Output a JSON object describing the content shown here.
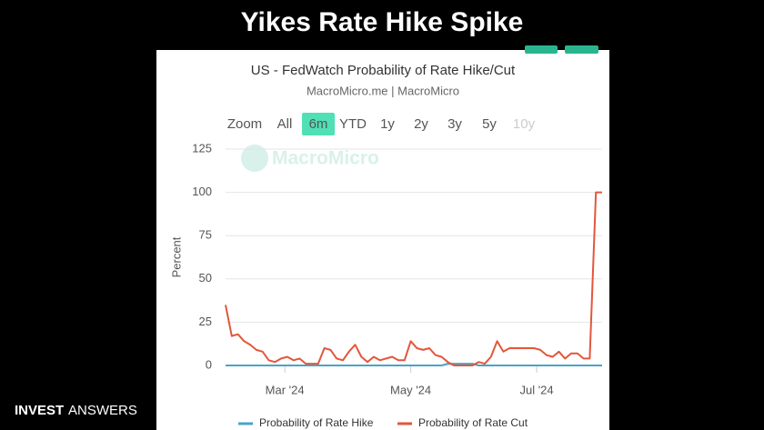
{
  "header": {
    "title": "Yikes Rate Hike Spike"
  },
  "brand": {
    "left": "INVEST",
    "right": "ANSWERS"
  },
  "zoom": {
    "label": "Zoom",
    "buttons": [
      "All",
      "6m",
      "YTD",
      "1y",
      "2y",
      "3y",
      "5y",
      "10y"
    ],
    "selected": "6m",
    "disabled": [
      "10y"
    ]
  },
  "watermark": "MacroMicro",
  "chart_data": {
    "type": "line",
    "title": "US - FedWatch Probability of Rate Hike/Cut",
    "subtitle": "MacroMicro.me | MacroMicro",
    "y_label": "Percent",
    "ylim": [
      0,
      125
    ],
    "yticks": [
      0,
      25,
      50,
      75,
      100,
      125
    ],
    "xlim": [
      0,
      61
    ],
    "xticks": [
      {
        "value": 9.6,
        "label": "Mar '24"
      },
      {
        "value": 30.0,
        "label": "May '24"
      },
      {
        "value": 50.4,
        "label": "Jul '24"
      }
    ],
    "grid": true,
    "series": [
      {
        "name": "Probability of Rate Hike",
        "color": "#4ba3c7",
        "values": [
          0,
          0,
          0,
          0,
          0,
          0,
          0,
          0,
          0,
          0,
          0,
          0,
          0,
          0,
          0,
          0,
          0,
          0,
          0,
          0,
          0,
          0,
          0,
          0,
          0,
          0,
          0,
          0,
          0,
          0,
          0,
          0,
          0,
          0,
          0,
          0,
          1,
          1,
          1,
          1,
          1,
          0,
          0,
          0,
          0,
          0,
          0,
          0,
          0,
          0,
          0,
          0,
          0,
          0,
          0,
          0,
          0,
          0,
          0,
          0,
          0,
          0
        ]
      },
      {
        "name": "Probability of Rate Cut",
        "color": "#e2573c",
        "values": [
          35,
          17,
          18,
          14,
          12,
          9,
          8,
          3,
          2,
          4,
          5,
          3,
          4,
          1,
          1,
          1,
          10,
          9,
          4,
          3,
          8,
          12,
          5,
          2,
          5,
          3,
          4,
          5,
          3,
          3,
          14,
          10,
          9,
          10,
          6,
          5,
          2,
          0,
          0,
          0,
          0,
          2,
          1,
          5,
          14,
          8,
          10,
          10,
          10,
          10,
          10,
          9,
          6,
          5,
          8,
          4,
          7,
          7,
          4,
          4,
          100,
          100
        ]
      }
    ]
  }
}
